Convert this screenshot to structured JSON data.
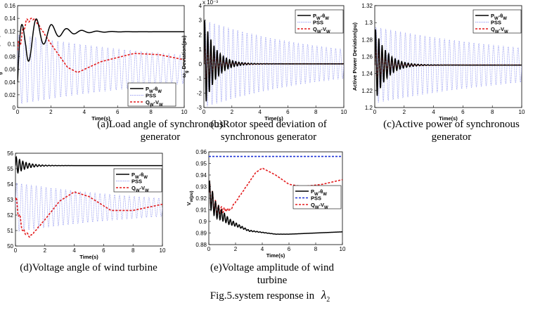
{
  "figure_caption": {
    "prefix": "Fig.5.system response in",
    "symbol": "λ",
    "subscript": "2"
  },
  "legend_labels": [
    "P_W-θ_W",
    "PSS",
    "Q_W-V_W"
  ],
  "colors": {
    "series1": "#000000",
    "series2": "#9ea3f2",
    "series3": "#e31a1c",
    "series2_vt": "#1f33d6"
  },
  "chart_data": [
    {
      "id": "a",
      "type": "line",
      "caption": [
        "(a)Load angle of synchronous",
        "generator"
      ],
      "xlabel": "Time(s)",
      "ylabel": "δ_g Deviation(rad)",
      "xlim": [
        0,
        10
      ],
      "ylim": [
        0,
        0.16
      ],
      "xticks": [
        0,
        2,
        4,
        6,
        8,
        10
      ],
      "yticks": [
        0,
        0.02,
        0.04,
        0.06,
        0.08,
        0.1,
        0.12,
        0.14,
        0.16
      ],
      "yticklabels": [
        "0",
        "0.02",
        "0.04",
        "0.06",
        "0.08",
        "0.1",
        "0.12",
        "0.14",
        "0.16"
      ],
      "ytick_exponent": "",
      "legend_position": "lower-right",
      "series": [
        {
          "name": "P_W-θ_W",
          "style": "solid",
          "color": "#000000",
          "shape": {
            "base": 0.12,
            "amp": 0.07,
            "freq": 1.1,
            "decay": 0.9,
            "settle": [
              [
                0,
                0.04
              ],
              [
                0.5,
                0.11
              ],
              [
                2,
                0.119
              ],
              [
                10,
                0.119
              ]
            ]
          }
        },
        {
          "name": "PSS",
          "style": "dotted",
          "color": "#9ea3f2",
          "shape": {
            "base": 0.06,
            "amp": 0.055,
            "freq": 3.0,
            "decay": 0.09,
            "settle": [
              [
                0,
                0.06
              ],
              [
                10,
                0.06
              ]
            ]
          }
        },
        {
          "name": "Q_W-V_W",
          "style": "dashed",
          "color": "#e31a1c",
          "shape": {
            "base": 0.0,
            "amp": 0.01,
            "freq": 4.0,
            "decay": 2.0,
            "settle": [
              [
                0,
                0.09
              ],
              [
                0.5,
                0.135
              ],
              [
                1.0,
                0.14
              ],
              [
                2.0,
                0.1
              ],
              [
                3.0,
                0.063
              ],
              [
                3.6,
                0.055
              ],
              [
                5.0,
                0.072
              ],
              [
                7.0,
                0.085
              ],
              [
                8.5,
                0.083
              ],
              [
                10,
                0.075
              ]
            ]
          }
        }
      ]
    },
    {
      "id": "b",
      "type": "line",
      "caption": [
        "(b)Rotor speed deviation of",
        "synchronous generator"
      ],
      "xlabel": "Time(s)",
      "ylabel": "ω_g Deviation(pu)",
      "xlim": [
        0,
        10
      ],
      "ylim": [
        -3,
        4
      ],
      "xticks": [
        0,
        2,
        4,
        6,
        8,
        10
      ],
      "yticks": [
        -3,
        -2,
        -1,
        0,
        1,
        2,
        3,
        4
      ],
      "yticklabels": [
        "-3",
        "-2",
        "-1",
        "0",
        "1",
        "2",
        "3",
        "4"
      ],
      "ytick_exponent": "x 10⁻³",
      "legend_position": "top-right",
      "series": [
        {
          "name": "P_W-θ_W",
          "style": "solid",
          "color": "#000000",
          "shape": {
            "base": 0.0,
            "amp": 3.2,
            "freq": 4.5,
            "decay": 1.3,
            "settle": [
              [
                0,
                0
              ],
              [
                10,
                0
              ]
            ]
          }
        },
        {
          "name": "PSS",
          "style": "dotted",
          "color": "#9ea3f2",
          "shape": {
            "base": 0.0,
            "amp": 3.0,
            "freq": 3.0,
            "decay": 0.11,
            "settle": [
              [
                0,
                0
              ],
              [
                10,
                0
              ]
            ]
          }
        },
        {
          "name": "Q_W-V_W",
          "style": "dashed",
          "color": "#e31a1c",
          "shape": {
            "base": 0.0,
            "amp": 2.4,
            "freq": 4.5,
            "decay": 1.7,
            "settle": [
              [
                0,
                0
              ],
              [
                10,
                0
              ]
            ]
          }
        }
      ]
    },
    {
      "id": "c",
      "type": "line",
      "caption": [
        "(c)Active power of synchronous",
        "generator"
      ],
      "xlabel": "Time(s)",
      "ylabel": "Active Power Deviation(pu)",
      "xlim": [
        0,
        10
      ],
      "ylim": [
        1.2,
        1.32
      ],
      "xticks": [
        0,
        2,
        4,
        6,
        8,
        10
      ],
      "yticks": [
        1.2,
        1.22,
        1.24,
        1.26,
        1.28,
        1.3,
        1.32
      ],
      "yticklabels": [
        "1.2",
        "1.22",
        "1.24",
        "1.26",
        "1.28",
        "1.3",
        "1.32"
      ],
      "ytick_exponent": "",
      "legend_position": "top-right",
      "series": [
        {
          "name": "P_W-θ_W",
          "style": "solid",
          "color": "#000000",
          "shape": {
            "base": 1.25,
            "amp": 0.045,
            "freq": 4.5,
            "decay": 1.3,
            "settle": [
              [
                0,
                1.25
              ],
              [
                10,
                1.25
              ]
            ]
          }
        },
        {
          "name": "PSS",
          "style": "dotted",
          "color": "#9ea3f2",
          "shape": {
            "base": 1.25,
            "amp": 0.045,
            "freq": 3.0,
            "decay": 0.08,
            "settle": [
              [
                0,
                1.25
              ],
              [
                10,
                1.25
              ]
            ]
          }
        },
        {
          "name": "Q_W-V_W",
          "style": "dashed",
          "color": "#e31a1c",
          "shape": {
            "base": 1.25,
            "amp": 0.035,
            "freq": 4.5,
            "decay": 1.7,
            "settle": [
              [
                0,
                1.25
              ],
              [
                10,
                1.25
              ]
            ]
          }
        }
      ]
    },
    {
      "id": "d",
      "type": "line",
      "caption": [
        "(d)Voltage angle of wind turbine"
      ],
      "xlabel": "Time(s)",
      "ylabel": "θ_w (rad)",
      "xlim": [
        0,
        10
      ],
      "ylim": [
        50,
        56
      ],
      "xticks": [
        0,
        2,
        4,
        6,
        8,
        10
      ],
      "yticks": [
        50,
        51,
        52,
        53,
        54,
        55,
        56
      ],
      "yticklabels": [
        "50",
        "51",
        "52",
        "53",
        "54",
        "55",
        "56"
      ],
      "ytick_exponent": "",
      "legend_position": "top-right",
      "series": [
        {
          "name": "P_W-θ_W",
          "style": "solid",
          "color": "#000000",
          "shape": {
            "base": 55.2,
            "amp": 0.6,
            "freq": 4.5,
            "decay": 1.5,
            "settle": [
              [
                0,
                55.2
              ],
              [
                10,
                55.2
              ]
            ]
          }
        },
        {
          "name": "PSS",
          "style": "dotted",
          "color": "#9ea3f2",
          "shape": {
            "base": 52.5,
            "amp": 1.6,
            "freq": 3.0,
            "decay": 0.1,
            "settle": [
              [
                0,
                52.5
              ],
              [
                10,
                52.5
              ]
            ]
          }
        },
        {
          "name": "Q_W-V_W",
          "style": "dashed",
          "color": "#e31a1c",
          "shape": {
            "base": 0.0,
            "amp": 0.4,
            "freq": 4.0,
            "decay": 2.0,
            "settle": [
              [
                0,
                53.0
              ],
              [
                0.5,
                51.0
              ],
              [
                1.0,
                50.6
              ],
              [
                2.0,
                51.7
              ],
              [
                3.0,
                52.9
              ],
              [
                4.0,
                53.5
              ],
              [
                5.0,
                53.2
              ],
              [
                6.5,
                52.3
              ],
              [
                8.0,
                52.3
              ],
              [
                10,
                52.7
              ]
            ]
          }
        }
      ]
    },
    {
      "id": "e",
      "type": "line",
      "caption": [
        "(e)Voltage amplitude of wind",
        "turbine"
      ],
      "xlabel": "Time(s)",
      "ylabel": "V_w(pu)",
      "xlim": [
        0,
        10
      ],
      "ylim": [
        0.88,
        0.96
      ],
      "xticks": [
        0,
        2,
        4,
        6,
        8,
        10
      ],
      "yticks": [
        0.88,
        0.89,
        0.9,
        0.91,
        0.92,
        0.93,
        0.94,
        0.95,
        0.96
      ],
      "yticklabels": [
        "0.88",
        "0.89",
        "0.9",
        "0.91",
        "0.92",
        "0.93",
        "0.94",
        "0.95",
        "0.96"
      ],
      "ytick_exponent": "",
      "legend_position": "right",
      "series": [
        {
          "name": "P_W-θ_W",
          "style": "solid",
          "color": "#000000",
          "shape": {
            "base": 0.0,
            "amp": 0.012,
            "freq": 4.5,
            "decay": 1.0,
            "settle": [
              [
                0,
                0.925
              ],
              [
                0.5,
                0.91
              ],
              [
                1.5,
                0.9
              ],
              [
                3.0,
                0.892
              ],
              [
                5.0,
                0.889
              ],
              [
                6.0,
                0.889
              ],
              [
                10,
                0.891
              ]
            ]
          }
        },
        {
          "name": "PSS",
          "style": "dashed",
          "color": "#1f33d6",
          "shape": {
            "base": 0.956,
            "amp": 0.0,
            "freq": 1.0,
            "decay": 1.0,
            "settle": [
              [
                0,
                0.956
              ],
              [
                10,
                0.956
              ]
            ]
          }
        },
        {
          "name": "Q_W-V_W",
          "style": "dashed",
          "color": "#e31a1c",
          "shape": {
            "base": 0.0,
            "amp": 0.012,
            "freq": 4.5,
            "decay": 1.6,
            "settle": [
              [
                0,
                0.925
              ],
              [
                0.6,
                0.91
              ],
              [
                1.6,
                0.91
              ],
              [
                2.5,
                0.925
              ],
              [
                3.5,
                0.942
              ],
              [
                4.0,
                0.946
              ],
              [
                5.0,
                0.94
              ],
              [
                6.0,
                0.932
              ],
              [
                7.0,
                0.93
              ],
              [
                8.5,
                0.932
              ],
              [
                10,
                0.936
              ]
            ]
          }
        }
      ]
    }
  ]
}
